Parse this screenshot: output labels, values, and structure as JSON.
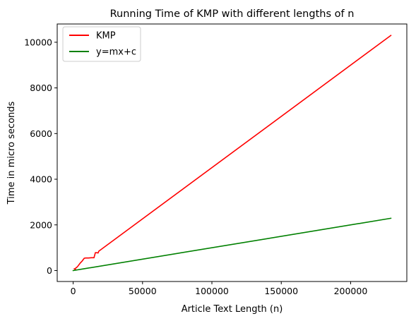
{
  "chart_data": {
    "type": "line",
    "title": "Running Time of KMP with different lengths of n",
    "xlabel": "Article Text Length (n)",
    "ylabel": "Time in micro seconds",
    "xlim": [
      -11500,
      240500
    ],
    "ylim": [
      -480,
      10800
    ],
    "xticks": [
      0,
      50000,
      100000,
      150000,
      200000
    ],
    "xtick_labels": [
      "0",
      "50000",
      "100000",
      "150000",
      "200000"
    ],
    "yticks": [
      0,
      2000,
      4000,
      6000,
      8000,
      10000
    ],
    "ytick_labels": [
      "0",
      "2000",
      "4000",
      "6000",
      "8000",
      "10000"
    ],
    "grid": false,
    "legend_position": "top-left",
    "series": [
      {
        "name": "KMP",
        "color": "#ff0000",
        "x": [
          800,
          1500,
          2000,
          3000,
          4000,
          5000,
          6500,
          8000,
          9000,
          11000,
          13000,
          15000,
          16000,
          17000,
          18000,
          18500,
          229000
        ],
        "y": [
          80,
          40,
          120,
          160,
          240,
          320,
          420,
          540,
          550,
          550,
          560,
          560,
          780,
          780,
          770,
          850,
          10300
        ]
      },
      {
        "name": "y=mx+c",
        "color": "#008000",
        "x": [
          0,
          229000
        ],
        "y": [
          0,
          2290
        ]
      }
    ]
  }
}
